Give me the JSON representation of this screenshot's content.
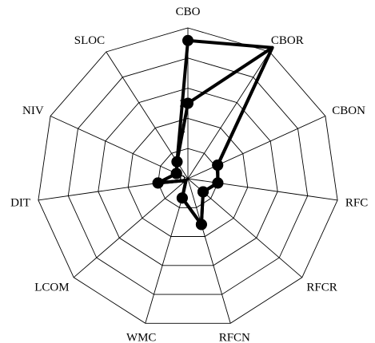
{
  "chart_data": {
    "type": "radar",
    "title": "",
    "axes": [
      "CBO",
      "CBOR",
      "CBON",
      "RFC",
      "RFCR",
      "RFCN",
      "WMC",
      "LCOM",
      "DIT",
      "NIV",
      "SLOC"
    ],
    "rlim": [
      0,
      6
    ],
    "ticks": [
      {
        "value": 0,
        "label": "0"
      },
      {
        "value": 2,
        "label": "2"
      },
      {
        "value": 3,
        "label": "3"
      }
    ],
    "grid": true,
    "series": [
      {
        "values": [
          5.5,
          6.2,
          1.3,
          1.2,
          0.8,
          1.9,
          0.8,
          0.1,
          1.2,
          0.5,
          0.8
        ],
        "line_color": "#000000",
        "marker_color": "#000000",
        "marker_indices": [
          0,
          2,
          3,
          4,
          5,
          6,
          8,
          9,
          10
        ]
      },
      {
        "values": [
          3.0,
          6.2,
          1.3,
          1.2,
          0.8,
          1.9,
          0.8,
          0.1,
          1.2,
          0.5,
          0.8
        ],
        "line_color": "#000000",
        "marker_color": "#000000",
        "marker_indices": [
          0,
          2,
          3,
          4,
          5,
          6,
          8,
          9,
          10
        ]
      }
    ]
  }
}
